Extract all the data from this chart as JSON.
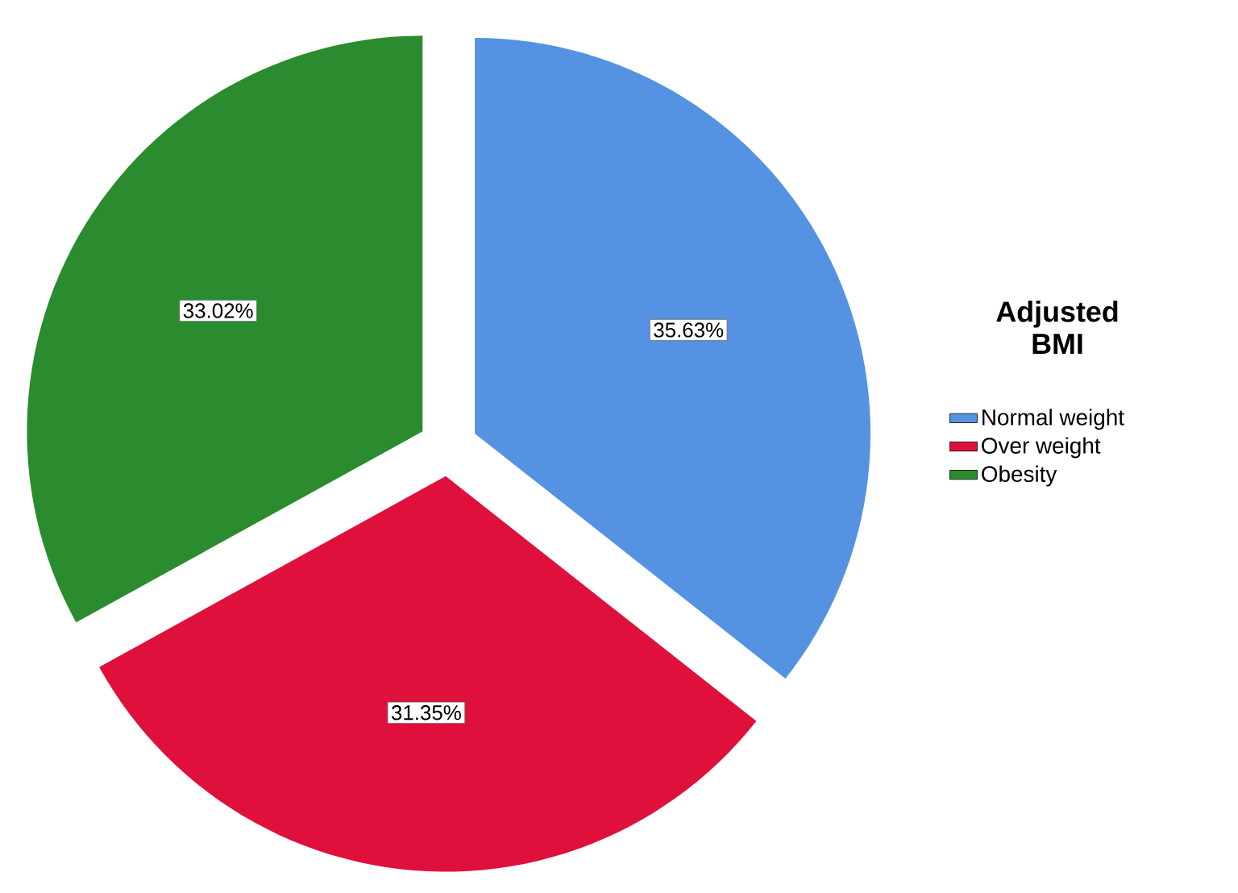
{
  "chart_data": {
    "type": "pie",
    "legend_title": "Adjusted BMI",
    "categories": [
      "Normal weight",
      "Over weight",
      "Obesity"
    ],
    "values": [
      35.63,
      31.35,
      33.02
    ],
    "value_labels": [
      "35.63%",
      "31.35%",
      "33.02%"
    ],
    "colors": [
      "#5592e2",
      "#e0103c",
      "#2a8c2e"
    ],
    "legend": "right"
  }
}
